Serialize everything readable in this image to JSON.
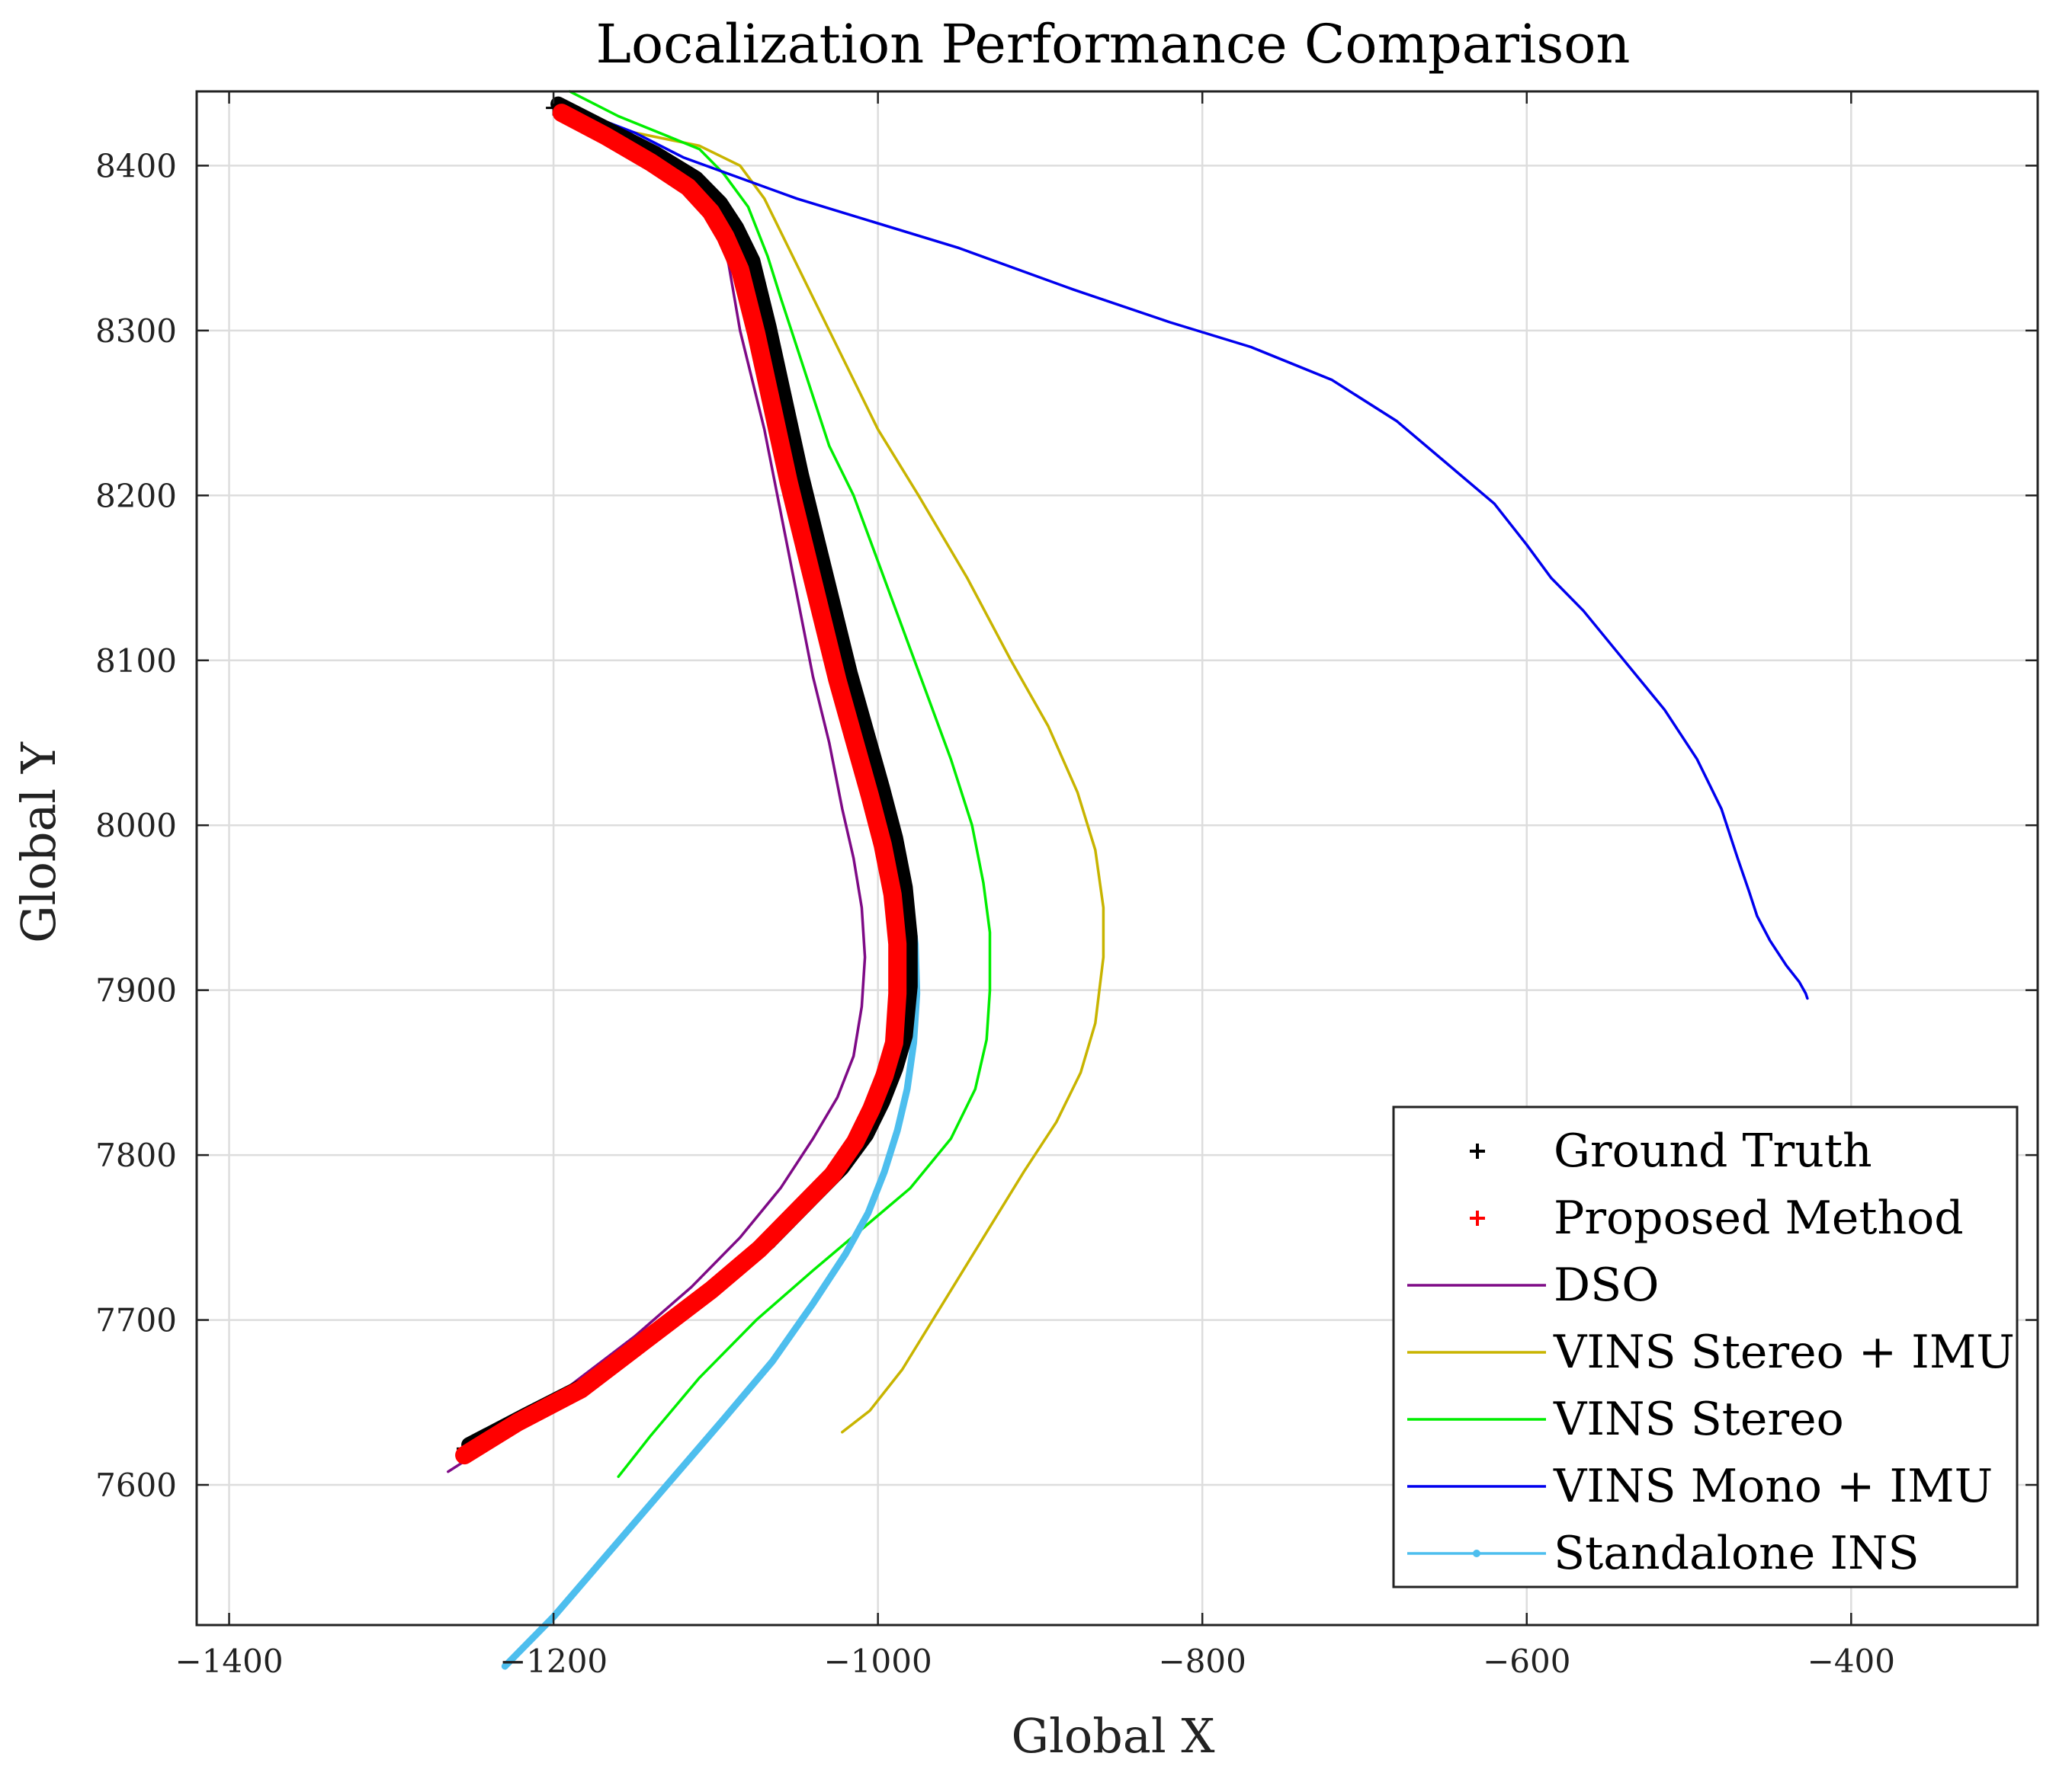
{
  "chart_data": {
    "type": "line",
    "title": "Localization Performance Comparison",
    "xlabel": "Global X",
    "ylabel": "Global Y",
    "xlim": [
      -1420,
      -285
    ],
    "ylim": [
      7515,
      8445
    ],
    "xticks": [
      -1400,
      -1200,
      -1000,
      -800,
      -600,
      -400
    ],
    "yticks": [
      7600,
      7700,
      7800,
      7900,
      8000,
      8100,
      8200,
      8300,
      8400
    ],
    "xtick_labels": [
      "−1400",
      "−1200",
      "−1000",
      "−800",
      "−600",
      "−400"
    ],
    "ytick_labels": [
      "7600",
      "7700",
      "7800",
      "7900",
      "8000",
      "8100",
      "8200",
      "8300",
      "8400"
    ],
    "grid": true,
    "legend_position": "bottom-right",
    "series": [
      {
        "name": "Ground Truth",
        "color": "#000000",
        "style": "marker-plus",
        "x": [
          -1200,
          -1170,
          -1140,
          -1115,
          -1100,
          -1090,
          -1080,
          -1070,
          -1060,
          -1050,
          -1040,
          -1030,
          -1020,
          -1010,
          -1000,
          -992,
          -986,
          -983,
          -983,
          -986,
          -992,
          -1000,
          -1010,
          -1025,
          -1045,
          -1070,
          -1100,
          -1140,
          -1180,
          -1220,
          -1255
        ],
        "y": [
          8435,
          8420,
          8405,
          8390,
          8375,
          8360,
          8340,
          8300,
          8255,
          8210,
          8170,
          8130,
          8090,
          8055,
          8020,
          7990,
          7960,
          7930,
          7900,
          7870,
          7850,
          7830,
          7810,
          7790,
          7770,
          7745,
          7720,
          7690,
          7660,
          7640,
          7622
        ]
      },
      {
        "name": "Proposed Method",
        "color": "#ff0000",
        "style": "marker-plus-thick",
        "x": [
          -1195,
          -1168,
          -1140,
          -1117,
          -1103,
          -1094,
          -1085,
          -1075,
          -1065,
          -1055,
          -1045,
          -1035,
          -1025,
          -1015,
          -1005,
          -997,
          -991,
          -988,
          -988,
          -990,
          -996,
          -1004,
          -1014,
          -1028,
          -1048,
          -1073,
          -1103,
          -1143,
          -1183,
          -1222,
          -1255
        ],
        "y": [
          8432,
          8418,
          8402,
          8387,
          8372,
          8357,
          8337,
          8298,
          8253,
          8208,
          8168,
          8128,
          8088,
          8053,
          8018,
          7988,
          7958,
          7928,
          7898,
          7868,
          7848,
          7828,
          7808,
          7788,
          7768,
          7743,
          7718,
          7688,
          7658,
          7638,
          7618
        ]
      },
      {
        "name": "DSO",
        "color": "#7e0a86",
        "style": "line",
        "x": [
          -1200,
          -1170,
          -1140,
          -1115,
          -1100,
          -1092,
          -1085,
          -1080,
          -1070,
          -1060,
          -1050,
          -1040,
          -1030,
          -1022,
          -1015,
          -1010,
          -1008,
          -1010,
          -1015,
          -1025,
          -1040,
          -1060,
          -1085,
          -1115,
          -1150,
          -1190,
          -1230,
          -1265
        ],
        "y": [
          8435,
          8420,
          8405,
          8390,
          8370,
          8340,
          8300,
          8280,
          8240,
          8190,
          8140,
          8090,
          8050,
          8010,
          7980,
          7950,
          7920,
          7890,
          7860,
          7835,
          7810,
          7780,
          7750,
          7720,
          7690,
          7660,
          7630,
          7608
        ]
      },
      {
        "name": "VINS Stereo + IMU",
        "color": "#c8b400",
        "style": "line",
        "x": [
          -1195,
          -1150,
          -1110,
          -1085,
          -1070,
          -1055,
          -1040,
          -1020,
          -1000,
          -975,
          -945,
          -918,
          -895,
          -877,
          -866,
          -861,
          -861,
          -866,
          -875,
          -890,
          -910,
          -935,
          -960,
          -985,
          -1005,
          -1022
        ],
        "y": [
          8432,
          8420,
          8412,
          8400,
          8380,
          8350,
          8320,
          8280,
          8240,
          8200,
          8150,
          8100,
          8060,
          8020,
          7985,
          7950,
          7920,
          7880,
          7850,
          7820,
          7790,
          7750,
          7710,
          7670,
          7645,
          7632
        ]
      },
      {
        "name": "VINS Stereo",
        "color": "#00ee00",
        "style": "line",
        "x": [
          -1190,
          -1160,
          -1130,
          -1110,
          -1095,
          -1080,
          -1068,
          -1060,
          -1050,
          -1040,
          -1030,
          -1015,
          -1000,
          -985,
          -970,
          -955,
          -942,
          -935,
          -931,
          -931,
          -933,
          -940,
          -955,
          -980,
          -1010,
          -1040,
          -1075,
          -1110,
          -1140,
          -1160
        ],
        "y": [
          8445,
          8430,
          8418,
          8410,
          8395,
          8375,
          8345,
          8320,
          8290,
          8260,
          8230,
          8200,
          8160,
          8120,
          8080,
          8040,
          8000,
          7965,
          7935,
          7900,
          7870,
          7840,
          7810,
          7780,
          7755,
          7730,
          7700,
          7665,
          7630,
          7605
        ]
      },
      {
        "name": "VINS Mono + IMU",
        "color": "#0000ee",
        "style": "line",
        "x": [
          -1190,
          -1150,
          -1120,
          -1050,
          -950,
          -880,
          -820,
          -770,
          -720,
          -680,
          -650,
          -620,
          -600,
          -585,
          -565,
          -540,
          -515,
          -495,
          -480,
          -470,
          -463,
          -458,
          -450,
          -440,
          -432,
          -428,
          -427
        ],
        "y": [
          8435,
          8420,
          8405,
          8380,
          8350,
          8325,
          8305,
          8290,
          8270,
          8245,
          8220,
          8195,
          8170,
          8150,
          8130,
          8100,
          8070,
          8040,
          8010,
          7980,
          7960,
          7945,
          7930,
          7915,
          7905,
          7898,
          7895
        ]
      },
      {
        "name": "Standalone INS",
        "color": "#4dbeee",
        "style": "line-dot",
        "x": [
          -1195,
          -1165,
          -1135,
          -1112,
          -1098,
          -1088,
          -1078,
          -1068,
          -1058,
          -1048,
          -1038,
          -1028,
          -1018,
          -1008,
          -998,
          -988,
          -981,
          -977,
          -976,
          -978,
          -982,
          -988,
          -996,
          -1006,
          -1020,
          -1040,
          -1065,
          -1095,
          -1130,
          -1165,
          -1200,
          -1230
        ],
        "y": [
          8432,
          8418,
          8403,
          8388,
          8373,
          8358,
          8338,
          8298,
          8253,
          8208,
          8168,
          8128,
          8088,
          8053,
          8018,
          7988,
          7958,
          7928,
          7898,
          7868,
          7840,
          7815,
          7790,
          7765,
          7740,
          7710,
          7675,
          7640,
          7600,
          7560,
          7520,
          7490
        ]
      }
    ]
  }
}
